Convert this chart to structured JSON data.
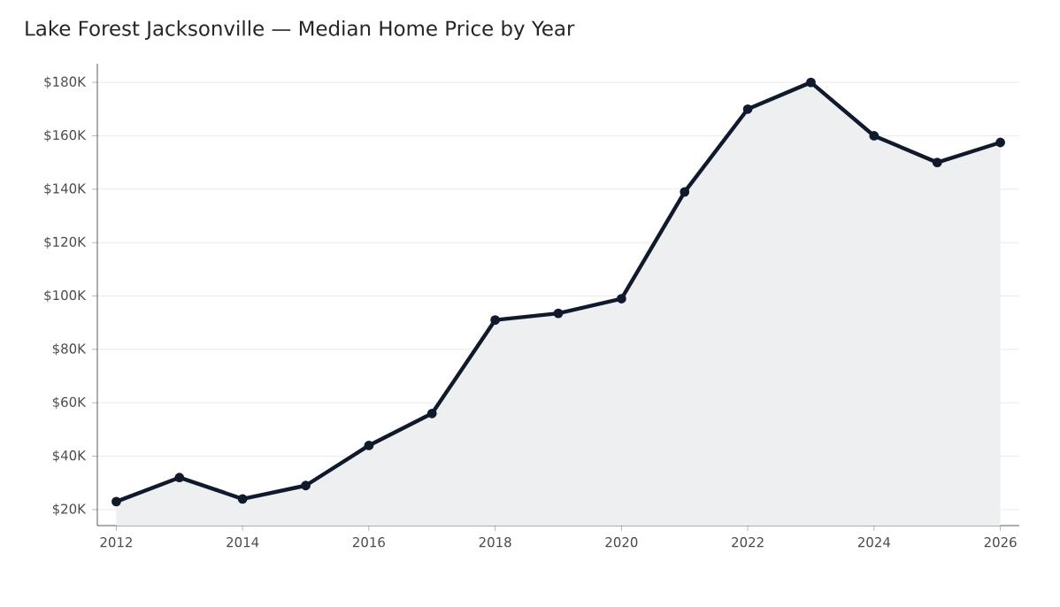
{
  "chart_data": {
    "type": "area",
    "title": "Lake Forest Jacksonville — Median Home Price by Year",
    "x": [
      2012,
      2013,
      2014,
      2015,
      2016,
      2017,
      2018,
      2019,
      2020,
      2021,
      2022,
      2023,
      2024,
      2025,
      2026
    ],
    "values": [
      23,
      32,
      24,
      29,
      44,
      56,
      91,
      93.5,
      99,
      139,
      170,
      180,
      160,
      150,
      157.5
    ],
    "color": "#111a2c",
    "xlim": [
      2011.7,
      2026.3
    ],
    "xticks": [
      2012,
      2014,
      2016,
      2018,
      2020,
      2022,
      2024,
      2026
    ],
    "ylim": [
      14,
      187
    ],
    "yticks": [
      {
        "value": 20,
        "label": "$20K"
      },
      {
        "value": 40,
        "label": "$40K"
      },
      {
        "value": 60,
        "label": "$60K"
      },
      {
        "value": 80,
        "label": "$80K"
      },
      {
        "value": 100,
        "label": "$100K"
      },
      {
        "value": 120,
        "label": "$120K"
      },
      {
        "value": 140,
        "label": "$140K"
      },
      {
        "value": 160,
        "label": "$160K"
      },
      {
        "value": 180,
        "label": "$180K"
      }
    ],
    "grid": "y",
    "marker": "circle"
  }
}
